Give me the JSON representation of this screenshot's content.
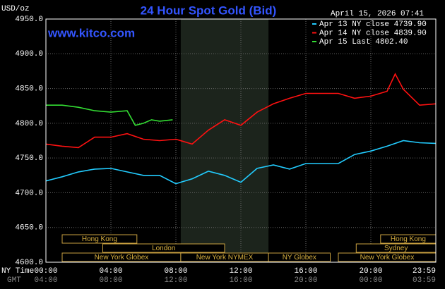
{
  "chart_data": {
    "type": "line",
    "title": "24 Hour Spot Gold (Bid)",
    "y_label": "USD/oz",
    "timestamp": "April 15, 2026 07:41",
    "watermark": "www.kitco.com",
    "x_label": "NY Time",
    "x2_label": "GMT",
    "xlim": [
      0,
      24
    ],
    "ylim": [
      4600,
      4950
    ],
    "grid": true,
    "xticks": [
      {
        "value": 0,
        "label": "00:00"
      },
      {
        "value": 4,
        "label": "04:00"
      },
      {
        "value": 8,
        "label": "08:00"
      },
      {
        "value": 12,
        "label": "12:00"
      },
      {
        "value": 16,
        "label": "16:00"
      },
      {
        "value": 20,
        "label": "20:00"
      },
      {
        "value": 23.98,
        "label": "23:59"
      }
    ],
    "x2ticks": [
      {
        "value": 0,
        "label": "04:00"
      },
      {
        "value": 4,
        "label": "08:00"
      },
      {
        "value": 8,
        "label": "12:00"
      },
      {
        "value": 12,
        "label": "16:00"
      },
      {
        "value": 16,
        "label": "20:00"
      },
      {
        "value": 20,
        "label": "00:00"
      },
      {
        "value": 23.98,
        "label": "03:59"
      }
    ],
    "yticks": [
      {
        "value": 4600,
        "label": "4600.0"
      },
      {
        "value": 4650,
        "label": "4650.0"
      },
      {
        "value": 4700,
        "label": "4700.0"
      },
      {
        "value": 4750,
        "label": "4750.0"
      },
      {
        "value": 4800,
        "label": "4800.0"
      },
      {
        "value": 4850,
        "label": "4850.0"
      },
      {
        "value": 4900,
        "label": "4900.0"
      },
      {
        "value": 4950,
        "label": "4950.0"
      }
    ],
    "series": [
      {
        "name": "Apr 13 NY close 4739.90",
        "color": "#22ccff",
        "x": [
          0,
          1,
          2,
          3,
          4,
          5,
          6,
          7,
          8,
          9,
          10,
          11,
          12,
          13,
          14,
          15,
          16,
          17,
          18,
          19,
          20,
          21,
          22,
          23,
          24
        ],
        "values": [
          4717,
          4723,
          4730,
          4734,
          4735,
          4730,
          4725,
          4725,
          4713,
          4720,
          4731,
          4725,
          4715,
          4735,
          4740,
          4734,
          4742,
          4742,
          4742,
          4755,
          4760,
          4767,
          4775,
          4772,
          4771
        ]
      },
      {
        "name": "Apr 14 NY close 4839.90",
        "color": "#ff1111",
        "x": [
          0,
          1,
          2,
          3,
          4,
          5,
          6,
          7,
          8,
          9,
          10,
          11,
          12,
          13,
          14,
          15,
          16,
          17,
          18,
          19,
          20,
          21,
          21.5,
          22,
          23,
          24
        ],
        "values": [
          4770,
          4767,
          4765,
          4780,
          4780,
          4785,
          4777,
          4775,
          4777,
          4770,
          4790,
          4805,
          4797,
          4816,
          4828,
          4836,
          4843,
          4843,
          4843,
          4836,
          4839,
          4846,
          4871,
          4849,
          4826,
          4828
        ]
      },
      {
        "name": "Apr 15 Last 4802.40",
        "color": "#33dd33",
        "x": [
          0,
          1,
          2,
          3,
          4,
          5,
          5.5,
          6,
          6.5,
          7,
          7.8
        ],
        "values": [
          4826,
          4826,
          4823,
          4818,
          4816,
          4818,
          4797,
          4800,
          4805,
          4803,
          4805
        ]
      }
    ],
    "session_rows": [
      [
        {
          "name": "Hong Kong",
          "start": 1,
          "end": 5.6
        },
        {
          "name": "Hong Kong",
          "start": 20.6,
          "end": 24
        }
      ],
      [
        {
          "name": "London",
          "start": 3.5,
          "end": 11
        },
        {
          "name": "Sydney",
          "start": 19.1,
          "end": 24
        }
      ],
      [
        {
          "name": "New York Globex",
          "start": 1,
          "end": 8.3
        },
        {
          "name": "New York NYMEX",
          "start": 8.3,
          "end": 13.7,
          "shaded": true
        },
        {
          "name": "NY Globex",
          "start": 13.7,
          "end": 17.5
        },
        {
          "name": "New York Globex",
          "start": 18,
          "end": 24
        }
      ]
    ]
  }
}
